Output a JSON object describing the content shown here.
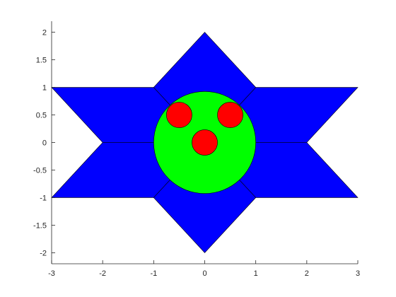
{
  "chart_data": {
    "type": "diagram",
    "xlim": [
      -3,
      3
    ],
    "ylim": [
      -2.2,
      2.2
    ],
    "grid": false,
    "axes_box": false,
    "x_ticks": [
      {
        "value": -3,
        "label": "-3"
      },
      {
        "value": -2,
        "label": "-2"
      },
      {
        "value": -1,
        "label": "-1"
      },
      {
        "value": 0,
        "label": "0"
      },
      {
        "value": 1,
        "label": "1"
      },
      {
        "value": 2,
        "label": "2"
      },
      {
        "value": 3,
        "label": "3"
      }
    ],
    "y_ticks": [
      {
        "value": -2,
        "label": "-2"
      },
      {
        "value": -1.5,
        "label": "-1.5"
      },
      {
        "value": -1,
        "label": "-1"
      },
      {
        "value": -0.5,
        "label": "-0.5"
      },
      {
        "value": 0,
        "label": "0"
      },
      {
        "value": 0.5,
        "label": "0.5"
      },
      {
        "value": 1,
        "label": "1"
      },
      {
        "value": 1.5,
        "label": "1.5"
      },
      {
        "value": 2,
        "label": "2"
      }
    ],
    "polygons": [
      {
        "name": "left-upper-parallelogram",
        "color": "#0000ff",
        "points": [
          [
            -3,
            1
          ],
          [
            -1,
            1
          ],
          [
            0,
            0
          ],
          [
            -2,
            0
          ]
        ]
      },
      {
        "name": "left-lower-parallelogram",
        "color": "#0000ff",
        "points": [
          [
            -3,
            -1
          ],
          [
            -1,
            -1
          ],
          [
            0,
            0
          ],
          [
            -2,
            0
          ]
        ]
      },
      {
        "name": "right-upper-parallelogram",
        "color": "#0000ff",
        "points": [
          [
            3,
            1
          ],
          [
            1,
            1
          ],
          [
            0,
            0
          ],
          [
            2,
            0
          ]
        ]
      },
      {
        "name": "right-lower-parallelogram",
        "color": "#0000ff",
        "points": [
          [
            3,
            -1
          ],
          [
            1,
            -1
          ],
          [
            0,
            0
          ],
          [
            2,
            0
          ]
        ]
      },
      {
        "name": "top-diamond",
        "color": "#0000ff",
        "points": [
          [
            0,
            2
          ],
          [
            1,
            1
          ],
          [
            0,
            0
          ],
          [
            -1,
            1
          ]
        ]
      },
      {
        "name": "bottom-diamond",
        "color": "#0000ff",
        "points": [
          [
            0,
            -2
          ],
          [
            1,
            -1
          ],
          [
            0,
            0
          ],
          [
            -1,
            -1
          ]
        ]
      }
    ],
    "circles": [
      {
        "name": "face-circle",
        "color": "#00ff00",
        "cx": 0,
        "cy": 0,
        "r": 1
      },
      {
        "name": "left-eye-circle",
        "color": "#ff0000",
        "cx": -0.5,
        "cy": 0.5,
        "r": 0.25
      },
      {
        "name": "right-eye-circle",
        "color": "#ff0000",
        "cx": 0.5,
        "cy": 0.5,
        "r": 0.25
      },
      {
        "name": "nose-circle",
        "color": "#ff0000",
        "cx": 0,
        "cy": 0,
        "r": 0.25
      }
    ],
    "edge_color": "#000000",
    "axis_color": "#262626"
  }
}
